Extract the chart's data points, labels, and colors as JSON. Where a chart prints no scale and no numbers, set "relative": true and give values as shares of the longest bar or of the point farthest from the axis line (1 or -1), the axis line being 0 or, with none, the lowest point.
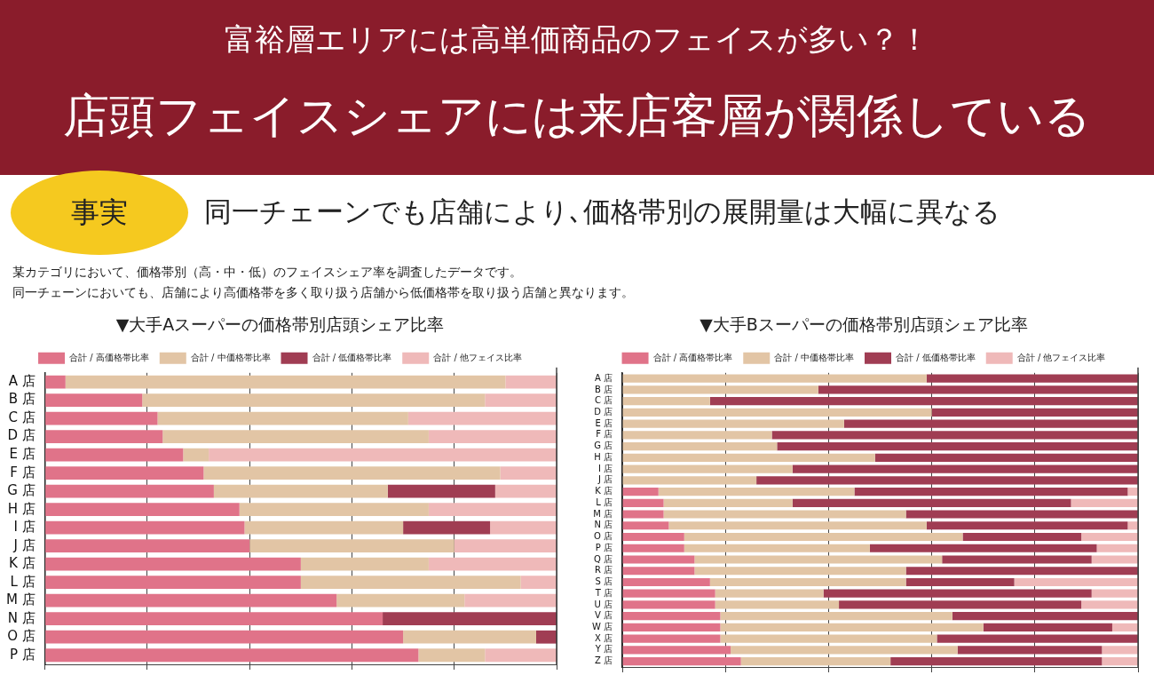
{
  "chart_data": [
    {
      "type": "bar",
      "title": "▼大手Aスーパーの価格帯別店頭シェア比率",
      "annotations": [
        "富裕層エリアには高単価商品のフェイスが多い？！",
        "店頭フェイスシェアには来店客層が関係している",
        "事実",
        "同一チェーンでも店舗により､価格帯別の展開量は大幅に異なる",
        "某カテゴリにおいて、価格帯別（高・中・低）のフェイスシェア率を調査したデータです。",
        "同一チェーンにおいても、店舗により高価格帯を多く取り扱う店舗から低価格帯を取り扱う店舗と異なります。"
      ],
      "orientation": "horizontal",
      "stacked": true,
      "relative": true,
      "grid": "x",
      "legend": "top",
      "categories": [
        "A 店",
        "B 店",
        "C 店",
        "D 店",
        "E 店",
        "F 店",
        "G 店",
        "H 店",
        "I 店",
        "J 店",
        "K 店",
        "L 店",
        "M 店",
        "N 店",
        "O 店",
        "P 店"
      ],
      "series": [
        {
          "name": "合計 / 高価格帯比率",
          "color": "#e07389",
          "values": [
            0.04,
            0.19,
            0.22,
            0.23,
            0.27,
            0.31,
            0.33,
            0.38,
            0.39,
            0.4,
            0.5,
            0.5,
            0.57,
            0.66,
            0.7,
            0.73
          ]
        },
        {
          "name": "合計 / 中価格帯比率",
          "color": "#e2c5a5",
          "values": [
            0.86,
            0.67,
            0.49,
            0.52,
            0.05,
            0.58,
            0.34,
            0.37,
            0.31,
            0.4,
            0.25,
            0.43,
            0.25,
            0,
            0.26,
            0.13
          ]
        },
        {
          "name": "合計 / 低価格帯比率",
          "color": "#a03d53",
          "values": [
            0,
            0,
            0,
            0,
            0,
            0,
            0.21,
            0,
            0.17,
            0,
            0,
            0,
            0,
            0.34,
            0.04,
            0
          ]
        },
        {
          "name": "合計 / 他フェイス比率",
          "color": "#efb9b9",
          "values": [
            0.1,
            0.14,
            0.29,
            0.25,
            0.68,
            0.11,
            0.12,
            0.25,
            0.13,
            0.2,
            0.25,
            0.07,
            0.18,
            0,
            0,
            0.14
          ]
        }
      ]
    },
    {
      "type": "bar",
      "title": "▼大手Bスーパーの価格帯別店頭シェア比率",
      "orientation": "horizontal",
      "stacked": true,
      "relative": true,
      "grid": "x",
      "legend": "top",
      "categories": [
        "A 店",
        "B 店",
        "C 店",
        "D 店",
        "E 店",
        "F 店",
        "G 店",
        "H 店",
        "I 店",
        "J 店",
        "K 店",
        "L 店",
        "M 店",
        "N 店",
        "O 店",
        "P 店",
        "Q 店",
        "R 店",
        "S 店",
        "T 店",
        "U 店",
        "V 店",
        "W 店",
        "X 店",
        "Y 店",
        "Z 店"
      ],
      "series": [
        {
          "name": "合計 / 高価格帯比率",
          "color": "#e07389",
          "values": [
            0,
            0,
            0,
            0,
            0,
            0,
            0,
            0,
            0,
            0,
            0.07,
            0.08,
            0.08,
            0.09,
            0.12,
            0.12,
            0.14,
            0.14,
            0.17,
            0.18,
            0.18,
            0.19,
            0.19,
            0.19,
            0.21,
            0.23
          ]
        },
        {
          "name": "合計 / 中価格帯比率",
          "color": "#e2c5a5",
          "values": [
            0.59,
            0.38,
            0.17,
            0.6,
            0.43,
            0.29,
            0.3,
            0.49,
            0.33,
            0.26,
            0.38,
            0.25,
            0.47,
            0.5,
            0.54,
            0.36,
            0.48,
            0.41,
            0.38,
            0.21,
            0.24,
            0.45,
            0.51,
            0.42,
            0.44,
            0.29
          ]
        },
        {
          "name": "合計 / 低価格帯比率",
          "color": "#a03d53",
          "values": [
            0.41,
            0.62,
            0.83,
            0.4,
            0.57,
            0.71,
            0.7,
            0.51,
            0.67,
            0.74,
            0.53,
            0.54,
            0.45,
            0.39,
            0.23,
            0.44,
            0.29,
            0.45,
            0.21,
            0.52,
            0.47,
            0.36,
            0.25,
            0.39,
            0.28,
            0.41
          ]
        },
        {
          "name": "合計 / 他フェイス比率",
          "color": "#efb9b9",
          "values": [
            0,
            0,
            0,
            0,
            0,
            0,
            0,
            0,
            0,
            0,
            0.02,
            0.13,
            0,
            0.02,
            0.11,
            0.08,
            0.09,
            0,
            0.24,
            0.09,
            0.11,
            0,
            0.05,
            0,
            0.07,
            0.07
          ]
        }
      ]
    }
  ]
}
